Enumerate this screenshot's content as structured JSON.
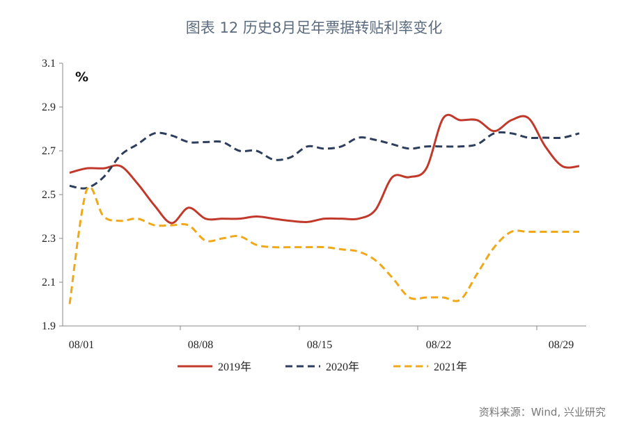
{
  "title": "图表 12  历史8月足年票据转贴利率变化",
  "source": "资料来源：Wind, 兴业研究",
  "chart_data": {
    "type": "line",
    "title": "图表 12  历史8月足年票据转贴利率变化",
    "ylabel": "%",
    "xlabel": "",
    "ylim": [
      1.9,
      3.1
    ],
    "yticks": [
      "1.9",
      "2.1",
      "2.3",
      "2.5",
      "2.7",
      "2.9",
      "3.1"
    ],
    "xticks": [
      "08/01",
      "08/08",
      "08/15",
      "08/22",
      "08/29"
    ],
    "x": [
      1,
      2,
      3,
      4,
      5,
      6,
      7,
      8,
      9,
      10,
      11,
      12,
      13,
      14,
      15,
      16,
      17,
      18,
      19,
      20,
      21,
      22,
      23,
      24,
      25,
      26,
      27,
      28,
      29,
      30,
      31
    ],
    "legend_position": "bottom",
    "grid": false,
    "series": [
      {
        "name": "2019年",
        "color": "#c0392b",
        "dash": "solid",
        "values": [
          2.6,
          2.62,
          2.62,
          2.63,
          2.55,
          2.45,
          2.37,
          2.44,
          2.39,
          2.39,
          2.39,
          2.4,
          2.39,
          2.38,
          2.375,
          2.39,
          2.39,
          2.39,
          2.43,
          2.58,
          2.58,
          2.62,
          2.85,
          2.84,
          2.84,
          2.79,
          2.84,
          2.85,
          2.72,
          2.63,
          2.63
        ]
      },
      {
        "name": "2020年",
        "color": "#2c3e5c",
        "dash": "dashed",
        "values": [
          2.54,
          2.53,
          2.58,
          2.68,
          2.73,
          2.78,
          2.77,
          2.74,
          2.74,
          2.74,
          2.7,
          2.7,
          2.66,
          2.67,
          2.72,
          2.71,
          2.72,
          2.76,
          2.75,
          2.73,
          2.71,
          2.72,
          2.72,
          2.72,
          2.73,
          2.78,
          2.78,
          2.76,
          2.76,
          2.76,
          2.78
        ]
      },
      {
        "name": "2021年",
        "color": "#f0a818",
        "dash": "dashed",
        "values": [
          2.0,
          2.52,
          2.4,
          2.38,
          2.39,
          2.36,
          2.36,
          2.36,
          2.29,
          2.3,
          2.31,
          2.27,
          2.26,
          2.26,
          2.26,
          2.26,
          2.25,
          2.24,
          2.2,
          2.12,
          2.03,
          2.03,
          2.03,
          2.02,
          2.14,
          2.26,
          2.33,
          2.33,
          2.33,
          2.33,
          2.33
        ]
      }
    ]
  }
}
